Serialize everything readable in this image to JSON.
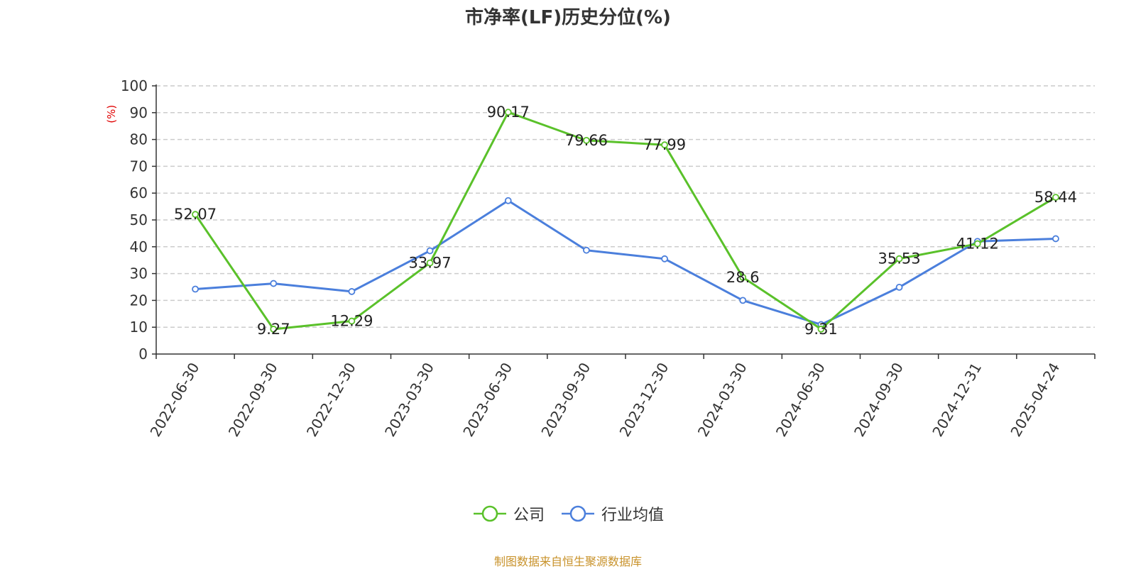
{
  "chart_data": {
    "type": "line",
    "title": "市净率(LF)历史分位(%)",
    "ylabel": "(%)",
    "xlabel": "",
    "ylim": [
      0,
      100
    ],
    "yticks": [
      0,
      10,
      20,
      30,
      40,
      50,
      60,
      70,
      80,
      90,
      100
    ],
    "grid": true,
    "legend_position": "bottom",
    "categories": [
      "2022-06-30",
      "2022-09-30",
      "2022-12-30",
      "2023-03-30",
      "2023-06-30",
      "2023-09-30",
      "2023-12-30",
      "2024-03-30",
      "2024-06-30",
      "2024-09-30",
      "2024-12-31",
      "2025-04-24"
    ],
    "series": [
      {
        "name": "公司",
        "color": "#5ac12a",
        "show_labels": true,
        "values": [
          52.07,
          9.27,
          12.29,
          33.97,
          90.17,
          79.66,
          77.99,
          28.6,
          9.31,
          35.53,
          41.12,
          58.44
        ]
      },
      {
        "name": "行业均值",
        "color": "#4b7fdc",
        "show_labels": false,
        "values": [
          24.2,
          26.3,
          23.3,
          38.5,
          57.2,
          38.7,
          35.5,
          20.0,
          11.0,
          24.9,
          42.0,
          43.0
        ]
      }
    ]
  },
  "source_note": "制图数据来自恒生聚源数据库"
}
